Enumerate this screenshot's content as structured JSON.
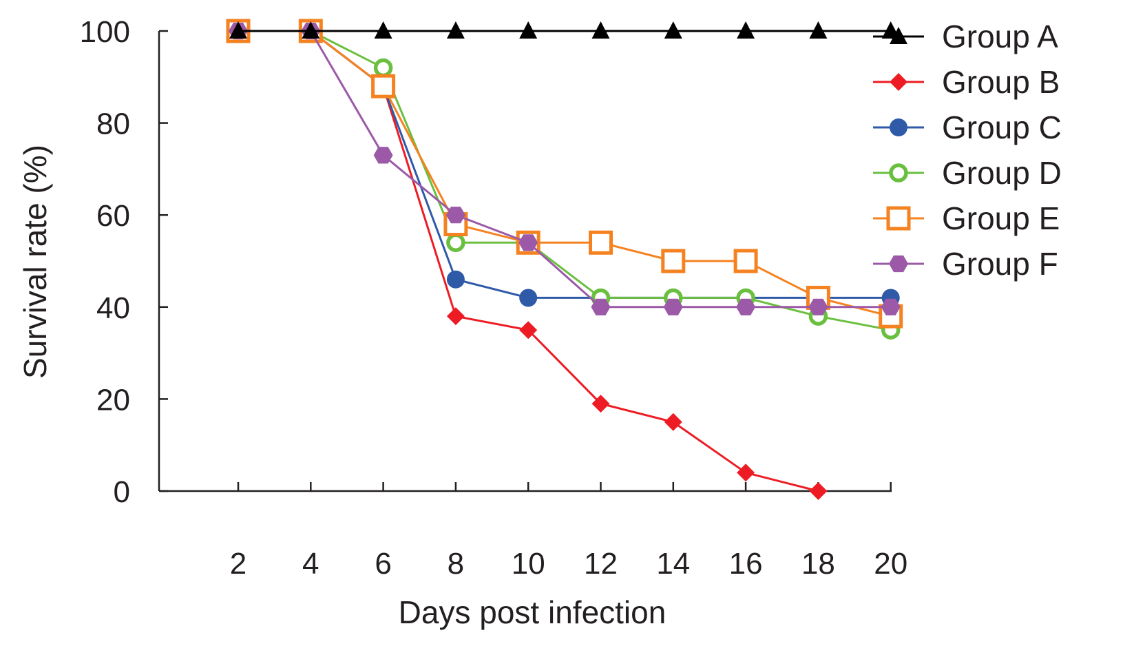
{
  "chart_data": {
    "type": "line",
    "title": "",
    "xlabel": "Days post infection",
    "ylabel": "Survival rate (%)",
    "x": [
      2,
      4,
      6,
      8,
      10,
      12,
      14,
      16,
      18,
      20
    ],
    "x_tick_labels": [
      "2",
      "4",
      "6",
      "8",
      "10",
      "12",
      "14",
      "16",
      "18",
      "20"
    ],
    "y_tick_values": [
      0,
      20,
      40,
      60,
      80,
      100
    ],
    "y_tick_labels": [
      "0",
      "20",
      "40",
      "60",
      "80",
      "100"
    ],
    "xlim": [
      0,
      20
    ],
    "ylim": [
      0,
      100
    ],
    "grid": false,
    "legend_position": "right",
    "series": [
      {
        "name": "Group A",
        "color": "#000000",
        "marker": "triangle",
        "values": [
          100,
          100,
          100,
          100,
          100,
          100,
          100,
          100,
          100,
          100
        ]
      },
      {
        "name": "Group B",
        "color": "#ed1c24",
        "marker": "diamond",
        "values": [
          100,
          100,
          88,
          38,
          35,
          19,
          15,
          4,
          0,
          null
        ]
      },
      {
        "name": "Group C",
        "color": "#2e5aa8",
        "marker": "circle",
        "values": [
          100,
          100,
          88,
          46,
          42,
          42,
          42,
          42,
          42,
          42
        ]
      },
      {
        "name": "Group D",
        "color": "#6abf3f",
        "marker": "ring",
        "values": [
          100,
          100,
          92,
          54,
          54,
          42,
          42,
          42,
          38,
          35
        ]
      },
      {
        "name": "Group E",
        "color": "#f58220",
        "marker": "square",
        "values": [
          100,
          100,
          88,
          58,
          54,
          54,
          50,
          50,
          42,
          38
        ]
      },
      {
        "name": "Group F",
        "color": "#9b59a8",
        "marker": "hexagon",
        "values": [
          100,
          100,
          73,
          60,
          54,
          40,
          40,
          40,
          40,
          40
        ]
      }
    ]
  }
}
